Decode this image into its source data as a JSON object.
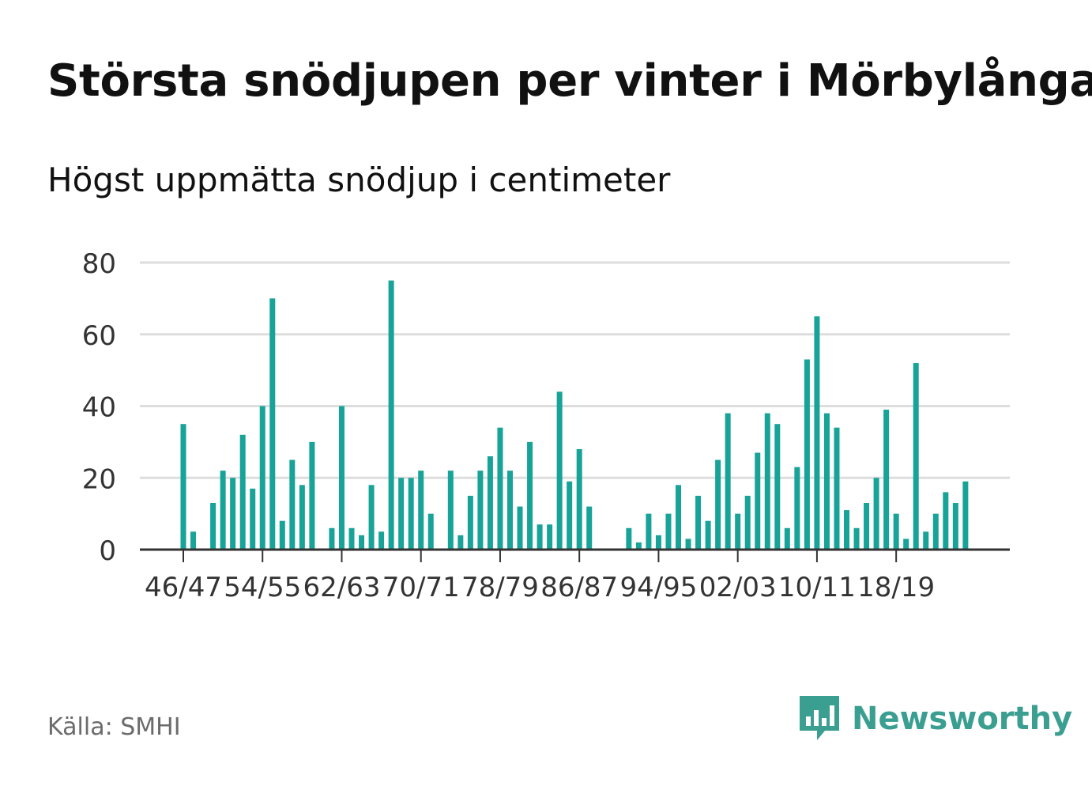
{
  "header": {
    "title": "Största snödjupen per vinter i Mörbylånga",
    "subtitle": "Högst uppmätta snödjup i centimeter"
  },
  "footer": {
    "source": "Källa: SMHI",
    "brand": "Newsworthy",
    "brand_icon": "newsworthy-logo-icon"
  },
  "colors": {
    "bar": "#17a398",
    "grid": "#dddddd",
    "axis": "#333333",
    "text": "#333333",
    "brand": "#3a9e90"
  },
  "chart_data": {
    "type": "bar",
    "ylim": [
      0,
      80
    ],
    "yticks": [
      0,
      20,
      40,
      60,
      80
    ],
    "grid": true,
    "xtick_labels": [
      "46/47",
      "54/55",
      "62/63",
      "70/71",
      "78/79",
      "86/87",
      "94/95",
      "02/03",
      "10/11",
      "18/19"
    ],
    "categories": [
      "46/47",
      "47/48",
      "48/49",
      "49/50",
      "50/51",
      "51/52",
      "52/53",
      "53/54",
      "54/55",
      "55/56",
      "56/57",
      "57/58",
      "58/59",
      "59/60",
      "60/61",
      "61/62",
      "62/63",
      "63/64",
      "64/65",
      "65/66",
      "66/67",
      "67/68",
      "68/69",
      "69/70",
      "70/71",
      "71/72",
      "72/73",
      "73/74",
      "74/75",
      "75/76",
      "76/77",
      "77/78",
      "78/79",
      "79/80",
      "80/81",
      "81/82",
      "82/83",
      "83/84",
      "84/85",
      "85/86",
      "86/87",
      "87/88",
      "88/89",
      "89/90",
      "90/91",
      "91/92",
      "92/93",
      "93/94",
      "94/95",
      "95/96",
      "96/97",
      "97/98",
      "98/99",
      "99/00",
      "00/01",
      "01/02",
      "02/03",
      "03/04",
      "04/05",
      "05/06",
      "06/07",
      "07/08",
      "08/09",
      "09/10",
      "10/11",
      "11/12",
      "12/13",
      "13/14",
      "14/15",
      "15/16",
      "16/17",
      "17/18",
      "18/19",
      "19/20",
      "20/21",
      "21/22",
      "22/23",
      "23/24",
      "24/25",
      "25/26"
    ],
    "values": [
      35,
      5,
      0,
      13,
      22,
      20,
      32,
      17,
      40,
      70,
      8,
      25,
      18,
      30,
      0,
      6,
      40,
      6,
      4,
      18,
      5,
      75,
      20,
      20,
      22,
      10,
      0,
      22,
      4,
      15,
      22,
      26,
      34,
      22,
      12,
      30,
      7,
      7,
      44,
      19,
      28,
      12,
      0,
      0,
      0,
      6,
      2,
      10,
      4,
      10,
      18,
      3,
      15,
      8,
      25,
      38,
      10,
      15,
      27,
      38,
      35,
      6,
      23,
      53,
      65,
      38,
      34,
      11,
      6,
      13,
      20,
      39,
      10,
      3,
      52,
      5,
      10,
      16,
      13,
      19
    ]
  }
}
